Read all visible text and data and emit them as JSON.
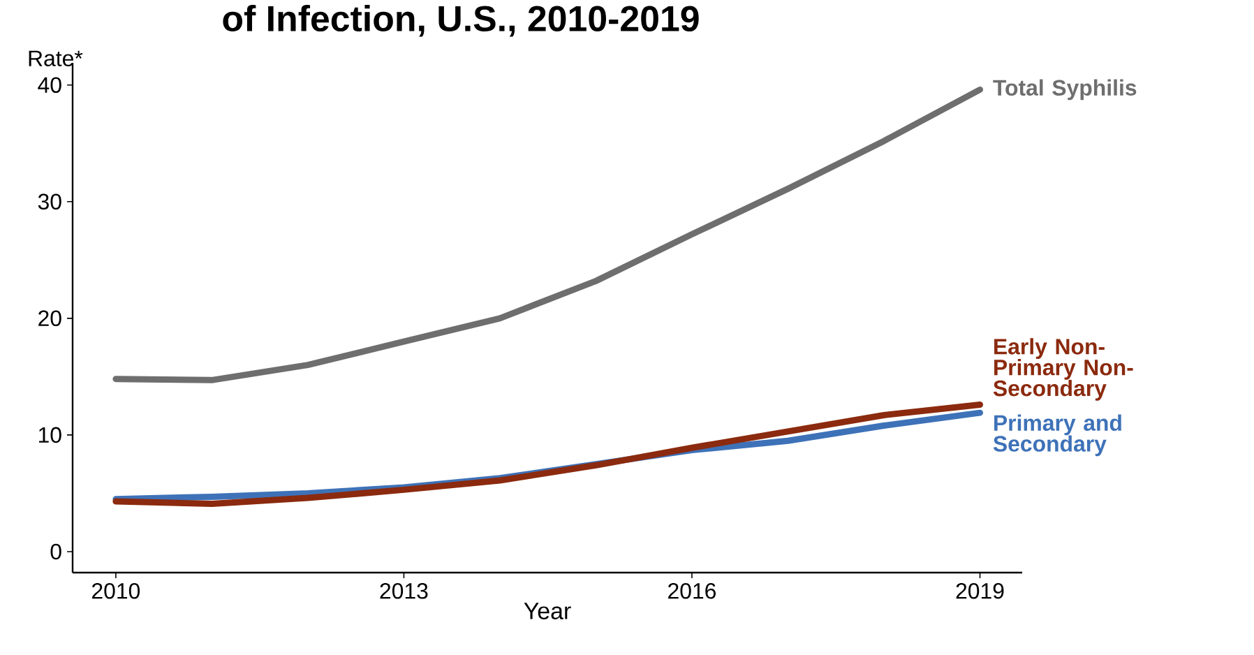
{
  "chart_data": {
    "type": "line",
    "title": "of Infection, U.S., 2010-2019",
    "ylabel": "Rate*",
    "xlabel": "Year",
    "x": [
      2010,
      2011,
      2012,
      2013,
      2014,
      2015,
      2016,
      2017,
      2018,
      2019
    ],
    "xlim": [
      2009.55,
      2019.44
    ],
    "xticks": [
      2010,
      2013,
      2016,
      2019
    ],
    "ylim": [
      -1.8,
      41.9
    ],
    "yticks": [
      0,
      10,
      20,
      30,
      40
    ],
    "grid": false,
    "legend": false,
    "line_style": "solid",
    "marker": "none",
    "series": [
      {
        "name": "Total Syphilis",
        "color": "#6e6e6e",
        "values": [
          14.8,
          14.7,
          16.0,
          18.0,
          20.0,
          23.2,
          27.2,
          31.1,
          35.2,
          39.6
        ]
      },
      {
        "name": "Primary and Secondary",
        "color": "#3e72b8",
        "values": [
          4.5,
          4.7,
          5.0,
          5.5,
          6.3,
          7.5,
          8.7,
          9.5,
          10.8,
          11.9
        ]
      },
      {
        "name": "Early Non-Primary Non-Secondary",
        "color": "#8b2a0e",
        "values": [
          4.3,
          4.1,
          4.6,
          5.3,
          6.1,
          7.4,
          8.9,
          10.3,
          11.7,
          12.6
        ]
      }
    ]
  }
}
